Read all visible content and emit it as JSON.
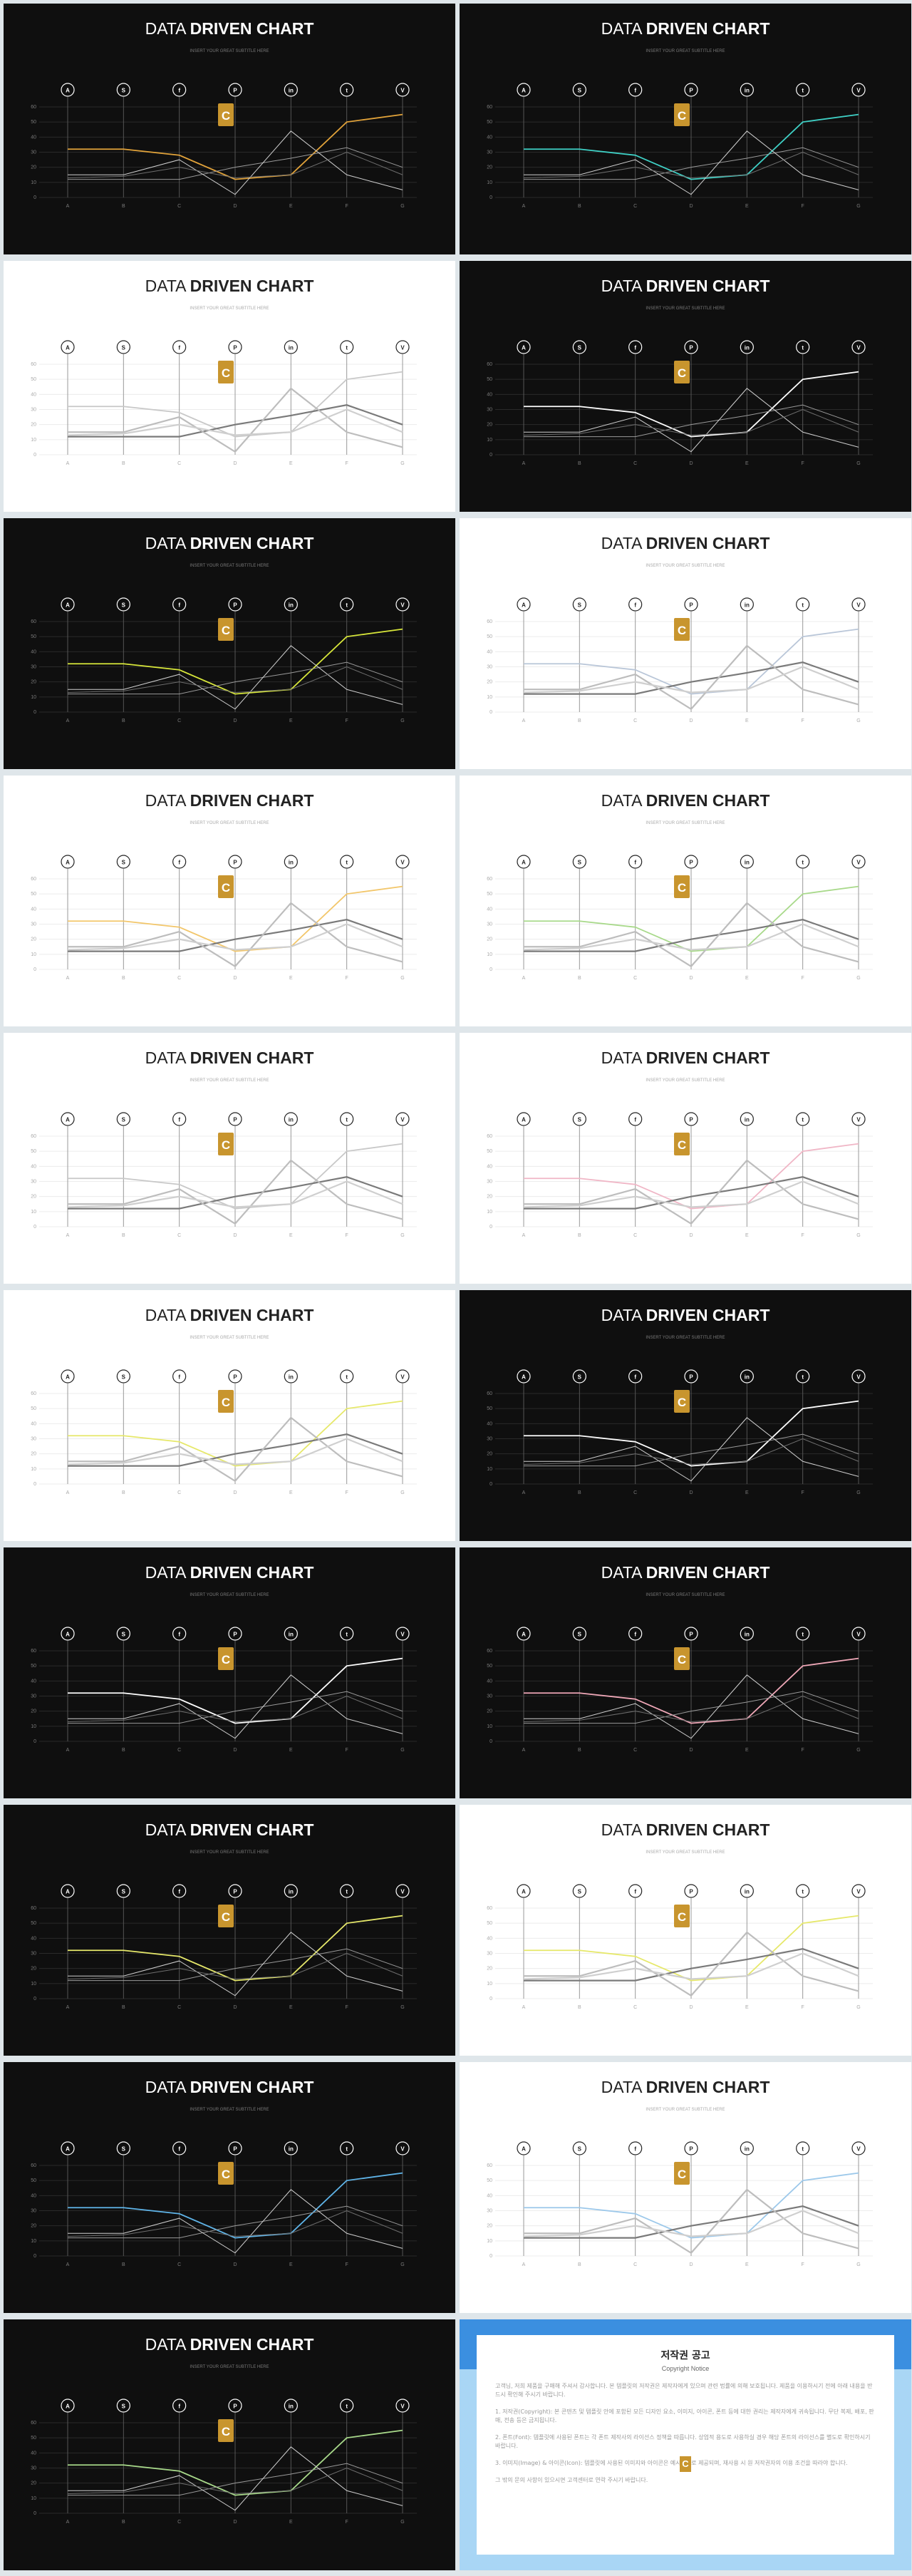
{
  "slide_common": {
    "title_light": "DATA",
    "title_bold": "DRIVEN CHART",
    "subtitle": "INSERT YOUR GREAT SUBTITLE HERE",
    "logo_letter": "C",
    "x_labels": [
      "A",
      "B",
      "C",
      "D",
      "E",
      "F",
      "G"
    ],
    "y_ticks": [
      0,
      10,
      20,
      30,
      40,
      50,
      60
    ],
    "icons": [
      "android-icon",
      "skype-icon",
      "facebook-icon",
      "pinterest-icon",
      "linkedin-icon",
      "twitter-icon",
      "vine-icon"
    ]
  },
  "chart_data": {
    "type": "line",
    "categories": [
      "A",
      "B",
      "C",
      "D",
      "E",
      "F",
      "G"
    ],
    "ylim": [
      0,
      60
    ],
    "series": [
      {
        "values": [
          32,
          32,
          28,
          12,
          15,
          50,
          55
        ]
      },
      {
        "values": [
          12,
          12,
          12,
          20,
          26,
          33,
          20
        ]
      },
      {
        "values": [
          15,
          15,
          25,
          2,
          44,
          15,
          5
        ]
      },
      {
        "values": [
          13,
          14,
          20,
          13,
          15,
          30,
          15
        ]
      }
    ]
  },
  "slides": [
    {
      "theme": "dark",
      "accent": "#e2a33a"
    },
    {
      "theme": "dark",
      "accent": "#3fd1c6"
    },
    {
      "theme": "light",
      "accent": "#c8c8c8"
    },
    {
      "theme": "dark",
      "accent": "#ffffff"
    },
    {
      "theme": "dark",
      "accent": "#d7e63a"
    },
    {
      "theme": "light",
      "accent": "#b9c6d8"
    },
    {
      "theme": "light",
      "accent": "#f2c66a"
    },
    {
      "theme": "light",
      "accent": "#a8d98a"
    },
    {
      "theme": "light",
      "accent": "#c8c8c8"
    },
    {
      "theme": "light",
      "accent": "#f0b6c6"
    },
    {
      "theme": "light",
      "accent": "#e6e86a"
    },
    {
      "theme": "dark",
      "accent": "#ffffff"
    },
    {
      "theme": "dark",
      "accent": "#ffffff"
    },
    {
      "theme": "dark",
      "accent": "#f0a8b8"
    },
    {
      "theme": "dark",
      "accent": "#e6e86a"
    },
    {
      "theme": "light",
      "accent": "#e6e86a"
    },
    {
      "theme": "dark",
      "accent": "#5fb4e8"
    },
    {
      "theme": "light",
      "accent": "#9cc8ea"
    },
    {
      "theme": "dark",
      "accent": "#a8d98a"
    }
  ],
  "copyright": {
    "title": "저작권 공고",
    "subtitle": "Copyright Notice",
    "paragraphs": [
      "고객님, 저희 제품을 구매해 주셔서 감사합니다. 본 템플릿의 저작권은 제작자에게 있으며 관련 법률에 의해 보호됩니다. 제품을 이용하시기 전에 아래 내용을 반드시 확인해 주시기 바랍니다.",
      "1. 저작권(Copyright): 본 콘텐츠 및 템플릿 안에 포함된 모든 디자인 요소, 이미지, 아이콘, 폰트 등에 대한 권리는 제작자에게 귀속됩니다. 무단 복제, 배포, 판매, 전송 등은 금지됩니다.",
      "2. 폰트(Font): 템플릿에 사용된 폰트는 각 폰트 제작사의 라이선스 정책을 따릅니다. 상업적 용도로 사용하실 경우 해당 폰트의 라이선스를 별도로 확인하시기 바랍니다.",
      "3. 이미지(Image) & 아이콘(Icon): 템플릿에 사용된 이미지와 아이콘은 예시용으로 제공되며, 재사용 시 원 저작권자의 이용 조건을 따라야 합니다.",
      "그 밖의 문의 사항이 있으시면 고객센터로 연락 주시기 바랍니다."
    ]
  }
}
